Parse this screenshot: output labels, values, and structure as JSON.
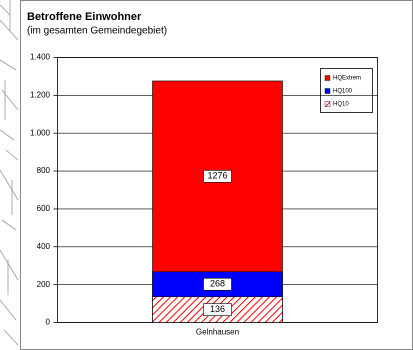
{
  "chart_data": {
    "type": "bar",
    "title": "Betroffene Einwohner",
    "subtitle": "(im gesamten Gemeindegebiet)",
    "categories": [
      "Gelnhausen"
    ],
    "series": [
      {
        "name": "HQExtrem",
        "color": "#ff0000",
        "values": [
          1276
        ]
      },
      {
        "name": "HQ100",
        "color": "#0000ff",
        "values": [
          268
        ]
      },
      {
        "name": "HQ10",
        "color": "#ff0000",
        "pattern": "hatch",
        "values": [
          136
        ]
      }
    ],
    "ylim": [
      0,
      1400
    ],
    "yticks": [
      0,
      200,
      400,
      600,
      800,
      {
        "value": 1000,
        "label": "1.000"
      },
      {
        "value": 1200,
        "label": "1.200"
      },
      {
        "value": 1400,
        "label": "1.400"
      }
    ],
    "grid": true,
    "legend": "top-right"
  }
}
